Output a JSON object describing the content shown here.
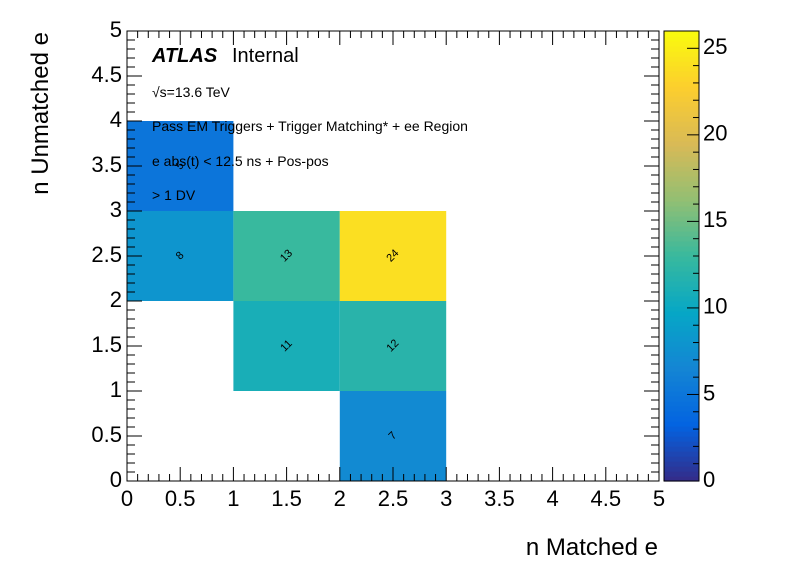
{
  "chart_data": {
    "type": "heatmap",
    "xlabel": "n Matched e",
    "ylabel": "n Unmatched e",
    "xlim": [
      0,
      5
    ],
    "ylim": [
      0,
      5
    ],
    "zlim": [
      0,
      26
    ],
    "x_ticks": [
      "0",
      "0.5",
      "1",
      "1.5",
      "2",
      "2.5",
      "3",
      "3.5",
      "4",
      "4.5",
      "5"
    ],
    "y_ticks": [
      "0",
      "0.5",
      "1",
      "1.5",
      "2",
      "2.5",
      "3",
      "3.5",
      "4",
      "4.5",
      "5"
    ],
    "z_ticks": [
      "0",
      "5",
      "10",
      "15",
      "20",
      "25"
    ],
    "bin_width": 1,
    "cells": [
      {
        "x": 0,
        "y": 3,
        "value": 5,
        "label": "5"
      },
      {
        "x": 0,
        "y": 2,
        "value": 8,
        "label": "8"
      },
      {
        "x": 1,
        "y": 2,
        "value": 13,
        "label": "13"
      },
      {
        "x": 2,
        "y": 2,
        "value": 24,
        "label": "24"
      },
      {
        "x": 1,
        "y": 1,
        "value": 11,
        "label": "11"
      },
      {
        "x": 2,
        "y": 1,
        "value": 12,
        "label": "12"
      },
      {
        "x": 2,
        "y": 0,
        "value": 7,
        "label": "7"
      }
    ],
    "colormap": [
      "#352a87",
      "#0363e1",
      "#1485d4",
      "#06a7c6",
      "#38b99e",
      "#92bf73",
      "#d9ba56",
      "#fcce2e",
      "#f9fb0e"
    ],
    "legend": "right"
  },
  "annotations": {
    "atlas": "ATLAS",
    "internal": "Internal",
    "sqrt_s": "√s=13.6 TeV",
    "line1": "Pass EM Triggers + Trigger Matching* + ee Region",
    "line2": "e abs(t) < 12.5 ns + Pos-pos",
    "line3": "> 1 DV"
  }
}
